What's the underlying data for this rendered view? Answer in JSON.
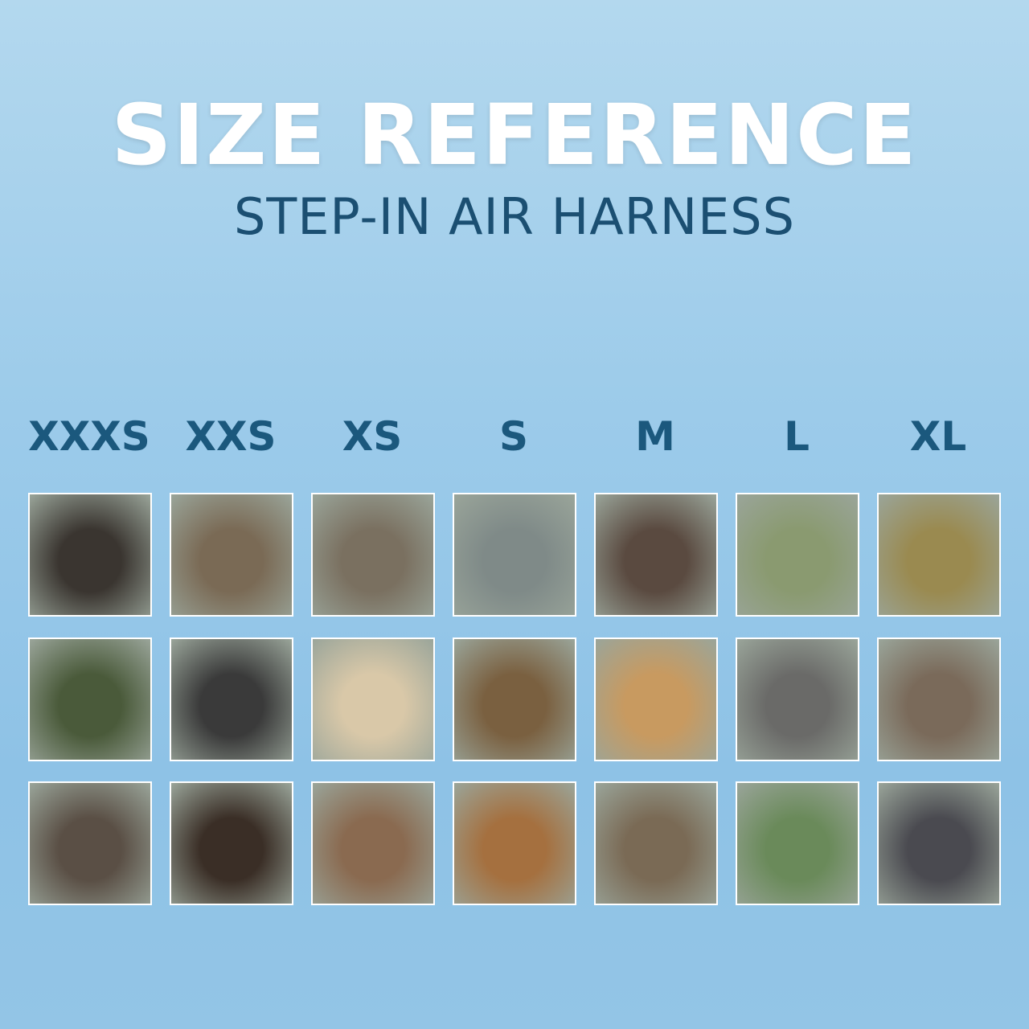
{
  "header": {
    "title": "SIZE REFERENCE",
    "subtitle": "STEP-IN AIR HARNESS"
  },
  "sizes": [
    {
      "label": "XXXS",
      "photo_colors": [
        "#3a3530",
        "#4a5a3a",
        "#5a4f45"
      ]
    },
    {
      "label": "XXS",
      "photo_colors": [
        "#7a6a55",
        "#3a3a3a",
        "#3a2e26"
      ]
    },
    {
      "label": "XS",
      "photo_colors": [
        "#7a7060",
        "#d9c8a8",
        "#8a6a50"
      ]
    },
    {
      "label": "S",
      "photo_colors": [
        "#7f8a88",
        "#7a6040",
        "#a5703f"
      ]
    },
    {
      "label": "M",
      "photo_colors": [
        "#5a4a40",
        "#c89a60",
        "#7a6a55"
      ]
    },
    {
      "label": "L",
      "photo_colors": [
        "#8a9a70",
        "#6a6a68",
        "#6a8a5a"
      ]
    },
    {
      "label": "XL",
      "photo_colors": [
        "#9a8a50",
        "#7a6a5a",
        "#4a4a50"
      ]
    }
  ]
}
